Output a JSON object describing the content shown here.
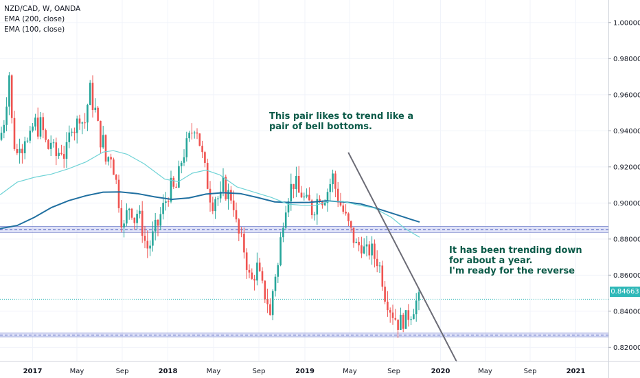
{
  "legend": {
    "symbol": "NZD/CAD, W, OANDA",
    "ema200": "EMA (200, close)",
    "ema100": "EMA (100, close)"
  },
  "annotations": {
    "note1_line1": "This pair likes to trend like a",
    "note1_line2": "pair of bell bottoms.",
    "note2_line1": "It has been trending down",
    "note2_line2": "for about a year.",
    "note2_line3": "I'm ready for the reverse"
  },
  "last_price": "0.84663",
  "colors": {
    "up": "#26a69a",
    "down": "#ef5350",
    "ema200": "#1f6fa0",
    "ema100": "#6fd3d6",
    "zone_fill": "#b8bff0",
    "zone_line": "#3f51b5",
    "trendline": "#6b6b75",
    "price_line": "#2fb8b8",
    "note_text": "#0b5a48"
  },
  "chart_data": {
    "type": "candlestick",
    "title": "NZD/CAD, W, OANDA",
    "x_tick_labels": [
      "2017",
      "May",
      "Sep",
      "2018",
      "May",
      "Sep",
      "2019",
      "May",
      "Sep",
      "2020",
      "May",
      "Sep",
      "2021"
    ],
    "y_tick_labels": [
      "1.00000",
      "0.98000",
      "0.96000",
      "0.94000",
      "0.92000",
      "0.90000",
      "0.88000",
      "0.86000",
      "0.84000",
      "0.82000"
    ],
    "ylim": [
      0.8125,
      1.0125
    ],
    "grid": true,
    "series": [
      {
        "name": "EMA (200, close)",
        "values": [
          [
            0,
            0.8858
          ],
          [
            25,
            0.8875
          ],
          [
            50,
            0.892
          ],
          [
            75,
            0.8975
          ],
          [
            100,
            0.9013
          ],
          [
            125,
            0.904
          ],
          [
            150,
            0.906
          ],
          [
            175,
            0.9061
          ],
          [
            200,
            0.9052
          ],
          [
            225,
            0.9034
          ],
          [
            250,
            0.902
          ],
          [
            275,
            0.9028
          ],
          [
            300,
            0.9049
          ],
          [
            325,
            0.9057
          ],
          [
            350,
            0.9052
          ],
          [
            375,
            0.903
          ],
          [
            400,
            0.9006
          ],
          [
            425,
            0.9002
          ],
          [
            450,
            0.9003
          ],
          [
            475,
            0.9012
          ],
          [
            500,
            0.9006
          ],
          [
            525,
            0.8995
          ],
          [
            550,
            0.8968
          ],
          [
            575,
            0.8938
          ],
          [
            600,
            0.8907
          ],
          [
            611,
            0.8894
          ]
        ]
      },
      {
        "name": "EMA (100, close)",
        "values": [
          [
            0,
            0.9045
          ],
          [
            25,
            0.9115
          ],
          [
            50,
            0.9142
          ],
          [
            75,
            0.916
          ],
          [
            100,
            0.919
          ],
          [
            125,
            0.9227
          ],
          [
            150,
            0.9282
          ],
          [
            165,
            0.929
          ],
          [
            185,
            0.927
          ],
          [
            210,
            0.9217
          ],
          [
            240,
            0.9132
          ],
          [
            260,
            0.9118
          ],
          [
            280,
            0.9165
          ],
          [
            300,
            0.9182
          ],
          [
            320,
            0.9156
          ],
          [
            345,
            0.9089
          ],
          [
            370,
            0.906
          ],
          [
            395,
            0.9031
          ],
          [
            420,
            0.8993
          ],
          [
            440,
            0.8987
          ],
          [
            460,
            0.8988
          ],
          [
            480,
            0.901
          ],
          [
            500,
            0.9008
          ],
          [
            520,
            0.899
          ],
          [
            545,
            0.8972
          ],
          [
            570,
            0.892
          ],
          [
            590,
            0.8858
          ],
          [
            611,
            0.881
          ]
        ]
      }
    ],
    "horizontal_zones": [
      {
        "from": 0.8836,
        "to": 0.887,
        "center": 0.8852
      },
      {
        "from": 0.8258,
        "to": 0.8279,
        "center": 0.8268
      }
    ],
    "trendline": {
      "from": [
        2019.33,
        0.928
      ],
      "to": [
        2020.13,
        0.812
      ]
    },
    "last_price": 0.84663
  }
}
